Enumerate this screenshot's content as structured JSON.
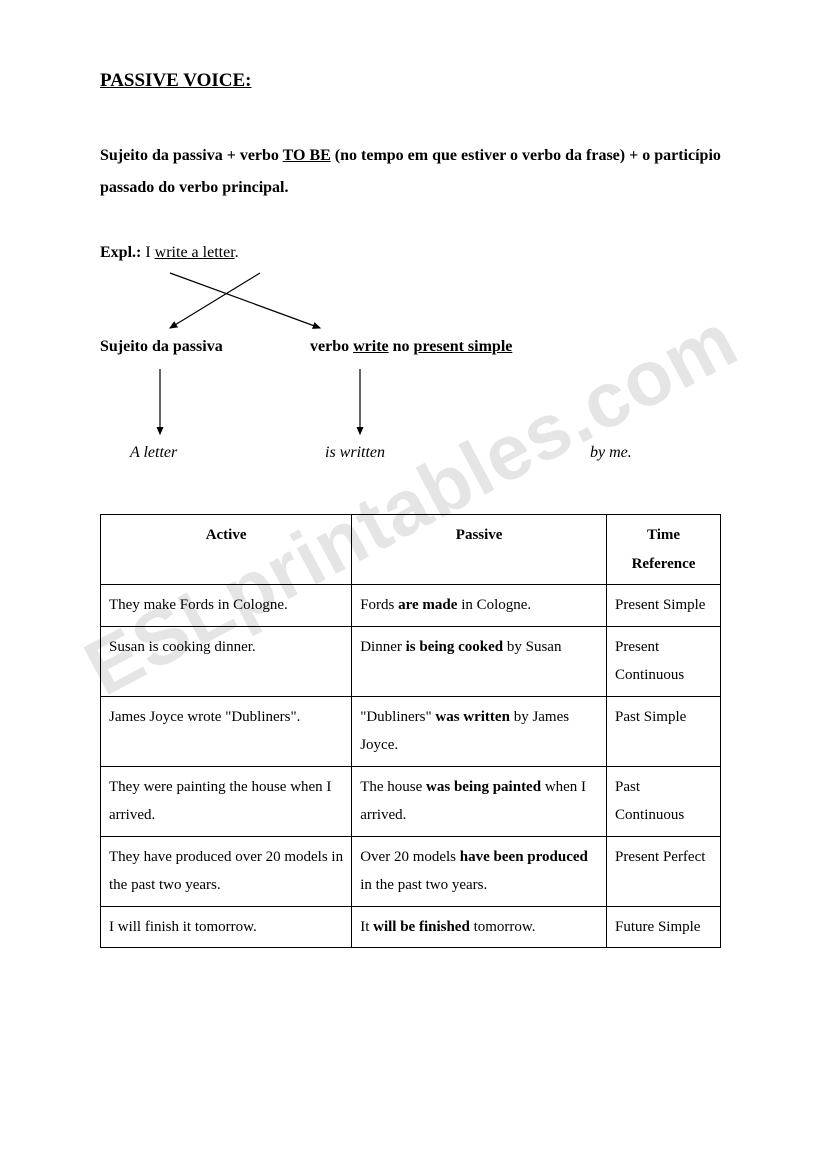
{
  "title": "PASSIVE VOICE:",
  "formula": {
    "part1": "Sujeito da passiva + verbo ",
    "tobe": "TO BE",
    "part2": " (no tempo em que estiver o verbo da frase) + o particípio passado do verbo principal."
  },
  "example": {
    "label": "Expl.:",
    "subject": " I   ",
    "verb": "write",
    "object": "   a letter",
    "period": ".",
    "left_label": "Sujeito da passiva",
    "right_prefix": "verbo ",
    "right_verb": "write",
    "right_mid": " no ",
    "right_tense": "present simple",
    "result_a": "A letter",
    "result_b": "is written",
    "result_c": "by me."
  },
  "table": {
    "headers": [
      "Active",
      "Passive",
      "Time Reference"
    ],
    "rows": [
      {
        "active": "They make Fords in Cologne.",
        "passive_pre": "Fords ",
        "passive_bold": "are made",
        "passive_post": " in Cologne.",
        "time": "Present Simple"
      },
      {
        "active": "Susan is cooking dinner.",
        "passive_pre": "Dinner ",
        "passive_bold": "is being cooked",
        "passive_post": " by Susan",
        "time": "Present Continuous"
      },
      {
        "active": "James Joyce wrote \"Dubliners\".",
        "passive_pre": "\"Dubliners\" ",
        "passive_bold": "was written",
        "passive_post": " by James Joyce.",
        "time": "Past Simple"
      },
      {
        "active": "They were painting the house when I arrived.",
        "passive_pre": "The house ",
        "passive_bold": "was being painted",
        "passive_post": " when I arrived.",
        "time": "Past Continuous"
      },
      {
        "active": "They have produced over 20 models in the past two years.",
        "passive_pre": "Over 20 models ",
        "passive_bold": "have been produced",
        "passive_post": " in the past two years.",
        "time": "Present Perfect"
      },
      {
        "active": " I will finish it tomorrow.",
        "passive_pre": "It ",
        "passive_bold": "will be finished",
        "passive_post": " tomorrow.",
        "time": "Future Simple"
      }
    ]
  },
  "watermark": "ESLprintables.com",
  "colors": {
    "text": "#000000",
    "bg": "#ffffff",
    "watermark": "rgba(0,0,0,0.10)",
    "border": "#000000"
  }
}
